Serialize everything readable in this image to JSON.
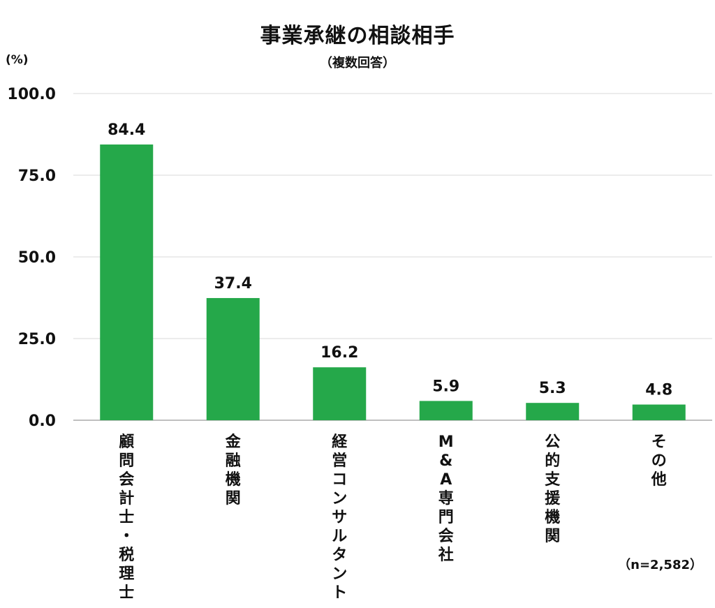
{
  "chart_data": {
    "type": "bar",
    "title": "事業承継の相談相手",
    "subtitle": "（複数回答）",
    "ylabel": "(%)",
    "categories": [
      "顧問会計士・税理士",
      "金融機関",
      "経営コンサルタント",
      "M&A専門会社",
      "公的支援機関",
      "その他"
    ],
    "values": [
      84.4,
      37.4,
      16.2,
      5.9,
      5.3,
      4.8
    ],
    "value_labels": [
      "84.4",
      "37.4",
      "16.2",
      "5.9",
      "5.3",
      "4.8"
    ],
    "ylim": [
      0,
      100
    ],
    "yticks": [
      "0.0",
      "25.0",
      "50.0",
      "75.0",
      "100.0"
    ],
    "grid": true,
    "note": "（n=2,582）",
    "colors": {
      "bar": "#25a84a",
      "grid": "#d9d9d9",
      "axis": "#bfbfbf"
    }
  }
}
